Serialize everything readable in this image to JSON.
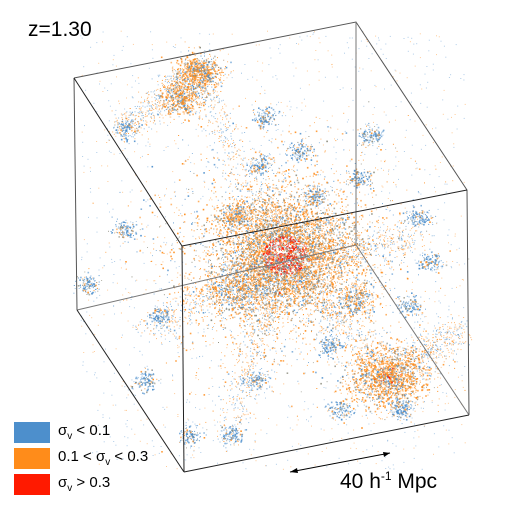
{
  "redshift_label": "z=1.30",
  "legend": [
    {
      "color": "#4d8fcc",
      "pre": "σ",
      "sub": "v",
      "post": " < 0.1"
    },
    {
      "color": "#ff8c1a",
      "pre": "0.1 < σ",
      "sub": "v",
      "post": " < 0.3"
    },
    {
      "color": "#ff1a00",
      "pre": "σ",
      "sub": "v",
      "post": " > 0.3"
    }
  ],
  "scale_bar": {
    "value": "40 h",
    "exponent": "-1",
    "unit": " Mpc"
  },
  "colors": {
    "blue": "#4d8fcc",
    "orange": "#ff8c1a",
    "red": "#ff1a00",
    "gray": "#8a8a7a",
    "edge": "#222222"
  }
}
